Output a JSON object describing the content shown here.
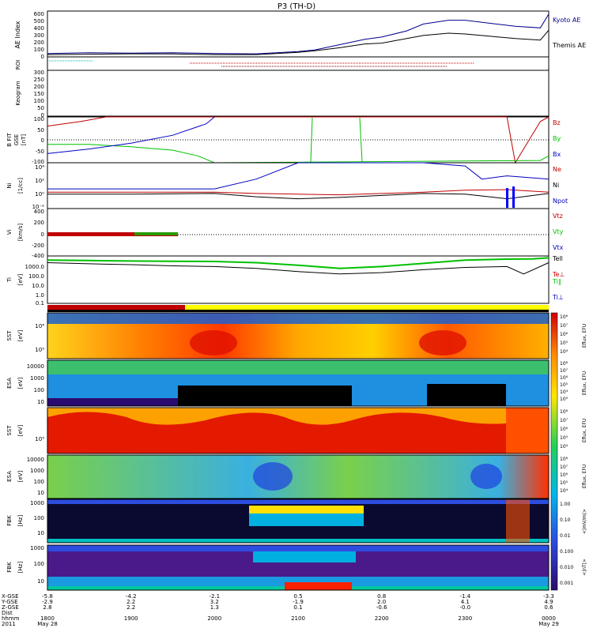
{
  "title": "P3 (TH-D)",
  "colors": {
    "kyoto": "#00008b",
    "themis": "#000000",
    "bz": "#c00000",
    "by": "#00c000",
    "bx": "#0000c0",
    "ne": "#c00000",
    "ni": "#000000",
    "npot": "#0000c0",
    "vtz": "#c00000",
    "vty": "#00c000",
    "vtx": "#0000c0",
    "tell": "#000000",
    "teperp": "#c00000",
    "tiparallel": "#00c000",
    "tiperp": "#0000c0",
    "roi": "#8b0000",
    "orbit_red": "#c00000",
    "orbit_yellow": "#ffff00"
  },
  "panels": {
    "ae": {
      "ylabel": "AE Index",
      "ticks": [
        "0",
        "100",
        "200",
        "300",
        "400",
        "500",
        "600"
      ],
      "legend": [
        "Kyoto AE",
        "Themis AE"
      ]
    },
    "roi": {
      "ylabel": "ROI"
    },
    "kp": {
      "ylabel": "Keogram",
      "ticks": [
        "0",
        "50",
        "100",
        "150",
        "200",
        "250",
        "300"
      ]
    },
    "bfit": {
      "ylabel1": "B FIT",
      "ylabel2": "GSE",
      "ylabel3": "[nT]",
      "ticks": [
        "-100",
        "-50",
        "0",
        "50",
        "100"
      ],
      "legend": [
        "Bz",
        "By",
        "Bx"
      ]
    },
    "ni": {
      "ylabel1": "Ni",
      "ylabel2": "[1/cc]",
      "ticks": [
        "10⁴",
        "10²",
        "10⁰",
        "10⁻²"
      ],
      "legend": [
        "Ne",
        "Ni",
        "Npot"
      ]
    },
    "vi": {
      "ylabel1": "Vi",
      "ylabel2": "[km/s]",
      "ticks": [
        "-400",
        "-200",
        "0",
        "200",
        "400"
      ],
      "legend": [
        "Vtz",
        "Vty",
        "Vtx"
      ]
    },
    "ti": {
      "ylabel1": "Ti",
      "ylabel2": "[eV]",
      "ticks": [
        "1000.0",
        "100.0",
        "10.0",
        "1.0",
        "0.1"
      ],
      "legend": [
        "Tell",
        "Te⊥",
        "Ti∥",
        "Ti⊥"
      ]
    },
    "sst1": {
      "ylabel1": "SST",
      "ylabel2": "[eV]",
      "ticks": [
        "10⁴",
        "10⁵"
      ],
      "cb_label": "Eflux, EFU",
      "cb_ticks": [
        "10⁸",
        "10⁷",
        "10⁶",
        "10⁵",
        "10⁴"
      ]
    },
    "esa1": {
      "ylabel1": "ESA",
      "ylabel2": "[eV]",
      "ticks": [
        "10000",
        "1000",
        "100",
        "10"
      ],
      "cb_label": "Eflux, EFU",
      "cb_ticks": [
        "10⁸",
        "10⁷",
        "10⁶",
        "10⁵",
        "10⁴",
        "10³"
      ]
    },
    "sst2": {
      "ylabel1": "SST",
      "ylabel2": "[eV]",
      "ticks": [
        "10⁵"
      ],
      "cb_label": "Eflux, EFU",
      "cb_ticks": [
        "10⁸",
        "10⁷",
        "10⁶",
        "10⁵",
        "10⁴"
      ]
    },
    "esa2": {
      "ylabel1": "ESA",
      "ylabel2": "[eV]",
      "ticks": [
        "10000",
        "1000",
        "100",
        "10"
      ],
      "cb_label": "Eflux, EFU",
      "cb_ticks": [
        "10⁸",
        "10⁷",
        "10⁶",
        "10⁵",
        "10⁴"
      ]
    },
    "fbk1": {
      "ylabel1": "FBK",
      "ylabel2": "[Hz]",
      "ticks": [
        "1000",
        "100",
        "10"
      ],
      "cb_label": "<|mV/m|>",
      "cb_ticks": [
        "1.00",
        "0.10",
        "0.01"
      ]
    },
    "fbk2": {
      "ylabel1": "FBK",
      "ylabel2": "[Hz]",
      "ticks": [
        "1000",
        "100",
        "10"
      ],
      "cb_label": "<|nT|>",
      "cb_ticks": [
        "0.100",
        "0.010",
        "0.001"
      ]
    }
  },
  "xaxis": {
    "row_labels": [
      "X-GSE",
      "Y-GSE",
      "Z-GSE",
      "Dist",
      "hhmm",
      "2011"
    ],
    "columns": [
      {
        "time": "1800",
        "vals": [
          "-5.8",
          "-2.9",
          "2.8"
        ],
        "date": "May 28"
      },
      {
        "time": "1900",
        "vals": [
          "-4.2",
          "2.2",
          "2.2"
        ],
        "date": ""
      },
      {
        "time": "2000",
        "vals": [
          "-2.1",
          "3.2",
          "1.3"
        ],
        "date": ""
      },
      {
        "time": "2100",
        "vals": [
          "0.5",
          "-1.9",
          "0.1"
        ],
        "date": ""
      },
      {
        "time": "2200",
        "vals": [
          "0.8",
          "2.0",
          "-0.6"
        ],
        "date": ""
      },
      {
        "time": "2300",
        "vals": [
          "-1.4",
          "4.1",
          "-0.0"
        ],
        "date": ""
      },
      {
        "time": "0000",
        "vals": [
          "-3.3",
          "4.9",
          "0.6"
        ],
        "date": "May 29"
      }
    ]
  },
  "chart_data": {
    "type": "line",
    "x_hours": [
      18,
      24
    ],
    "ae_kyoto": [
      [
        18.0,
        45
      ],
      [
        18.5,
        55
      ],
      [
        19.0,
        50
      ],
      [
        19.5,
        55
      ],
      [
        20.0,
        45
      ],
      [
        20.5,
        40
      ],
      [
        21.0,
        70
      ],
      [
        21.2,
        90
      ],
      [
        21.5,
        160
      ],
      [
        21.8,
        230
      ],
      [
        22.0,
        260
      ],
      [
        22.3,
        340
      ],
      [
        22.5,
        430
      ],
      [
        22.8,
        480
      ],
      [
        23.0,
        480
      ],
      [
        23.3,
        440
      ],
      [
        23.6,
        400
      ],
      [
        23.9,
        380
      ],
      [
        24.0,
        560
      ]
    ],
    "ae_themis": [
      [
        18.0,
        30
      ],
      [
        18.5,
        35
      ],
      [
        19.0,
        40
      ],
      [
        19.5,
        38
      ],
      [
        20.0,
        30
      ],
      [
        20.5,
        30
      ],
      [
        21.0,
        60
      ],
      [
        21.2,
        80
      ],
      [
        21.5,
        120
      ],
      [
        21.8,
        170
      ],
      [
        22.0,
        180
      ],
      [
        22.3,
        240
      ],
      [
        22.5,
        280
      ],
      [
        22.8,
        310
      ],
      [
        23.0,
        300
      ],
      [
        23.3,
        270
      ],
      [
        23.6,
        240
      ],
      [
        23.9,
        220
      ],
      [
        24.0,
        350
      ]
    ],
    "bz": [
      [
        18.0,
        60
      ],
      [
        18.4,
        80
      ],
      [
        18.7,
        100
      ],
      [
        23.5,
        100
      ],
      [
        23.6,
        -100
      ],
      [
        23.9,
        80
      ],
      [
        24.0,
        100
      ]
    ],
    "bx": [
      [
        18.0,
        -60
      ],
      [
        18.5,
        -40
      ],
      [
        19.0,
        -15
      ],
      [
        19.5,
        20
      ],
      [
        19.9,
        70
      ],
      [
        20.0,
        100
      ]
    ],
    "by": [
      [
        18.0,
        -20
      ],
      [
        18.5,
        -20
      ],
      [
        19.0,
        -30
      ],
      [
        19.5,
        -45
      ],
      [
        19.8,
        -70
      ],
      [
        20.0,
        -100
      ],
      [
        23.9,
        -90
      ],
      [
        24.0,
        -70
      ]
    ],
    "ni": [
      [
        18.0,
        1.0
      ],
      [
        19.0,
        1.0
      ],
      [
        20.0,
        1.0
      ],
      [
        20.5,
        2.5
      ],
      [
        21.0,
        6.0
      ],
      [
        21.5,
        6.5
      ],
      [
        22.0,
        6.0
      ],
      [
        22.5,
        5.5
      ],
      [
        23.0,
        4.5
      ],
      [
        23.2,
        2.5
      ],
      [
        23.5,
        3.0
      ],
      [
        24.0,
        2.5
      ]
    ],
    "ne": [
      [
        18.0,
        0.5
      ],
      [
        19.0,
        0.5
      ],
      [
        20.0,
        0.5
      ],
      [
        20.5,
        0.3
      ],
      [
        21.0,
        0.2
      ],
      [
        21.5,
        0.1
      ],
      [
        22.0,
        0.3
      ],
      [
        22.5,
        0.5
      ],
      [
        23.0,
        0.8
      ],
      [
        23.5,
        0.9
      ],
      [
        24.0,
        0.5
      ]
    ],
    "npot": [
      [
        18.0,
        0.2
      ],
      [
        19.0,
        0.2
      ],
      [
        20.0,
        0.3
      ],
      [
        20.5,
        -0.2
      ],
      [
        21.0,
        -0.5
      ],
      [
        21.5,
        -0.3
      ],
      [
        22.0,
        0.0
      ],
      [
        22.5,
        0.3
      ],
      [
        23.0,
        0.2
      ],
      [
        23.5,
        -0.5
      ],
      [
        24.0,
        0.3
      ]
    ],
    "vt": [
      [
        18.0,
        0
      ],
      [
        19.5,
        0
      ]
    ],
    "tell": [
      [
        18.0,
        1200
      ],
      [
        18.5,
        1100
      ],
      [
        19.0,
        1000
      ],
      [
        19.5,
        950
      ],
      [
        20.0,
        900
      ],
      [
        20.5,
        700
      ],
      [
        21.0,
        400
      ],
      [
        21.5,
        200
      ],
      [
        22.0,
        300
      ],
      [
        22.5,
        600
      ],
      [
        23.0,
        1200
      ],
      [
        23.5,
        1500
      ],
      [
        23.8,
        1600
      ],
      [
        24.0,
        2000
      ]
    ],
    "ti": [
      [
        18.0,
        700
      ],
      [
        18.5,
        550
      ],
      [
        19.0,
        450
      ],
      [
        19.5,
        350
      ],
      [
        20.0,
        300
      ],
      [
        20.5,
        200
      ],
      [
        21.0,
        100
      ],
      [
        21.5,
        60
      ],
      [
        22.0,
        80
      ],
      [
        22.5,
        150
      ],
      [
        23.0,
        250
      ],
      [
        23.5,
        300
      ],
      [
        23.7,
        60
      ],
      [
        24.0,
        700
      ]
    ]
  }
}
